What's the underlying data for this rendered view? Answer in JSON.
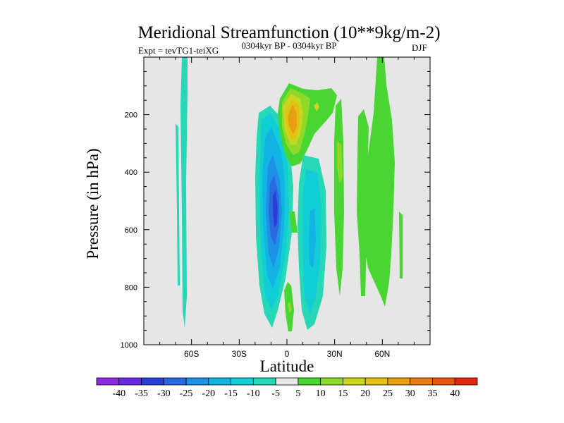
{
  "chart_data": {
    "type": "contour",
    "title": "Meridional Streamfunction (10**9kg/m-2)",
    "left_string": "Expt = tevTG1-teiXG",
    "center_string": "0304kyr BP - 0304kyr BP",
    "right_string": "DJF",
    "xlabel": "Latitude",
    "ylabel": "Pressure (in hPa)",
    "xlim": [
      -90,
      90
    ],
    "ylim": [
      1000,
      0
    ],
    "x_ticks": [
      {
        "value": -60,
        "label": "60S"
      },
      {
        "value": -30,
        "label": "30S"
      },
      {
        "value": 0,
        "label": "0"
      },
      {
        "value": 30,
        "label": "30N"
      },
      {
        "value": 60,
        "label": "60N"
      }
    ],
    "y_ticks": [
      {
        "value": 200,
        "label": "200"
      },
      {
        "value": 400,
        "label": "400"
      },
      {
        "value": 600,
        "label": "600"
      },
      {
        "value": 800,
        "label": "800"
      },
      {
        "value": 1000,
        "label": "1000"
      }
    ],
    "colorbar": {
      "levels": [
        "-40",
        "-35",
        "-30",
        "-25",
        "-20",
        "-15",
        "-10",
        "-5",
        "5",
        "10",
        "15",
        "20",
        "25",
        "30",
        "35",
        "40"
      ],
      "colors": [
        "#8a2be2",
        "#6a2be0",
        "#2b3fd6",
        "#2a6ae0",
        "#1e90e6",
        "#12b4e4",
        "#10cdd6",
        "#26d8b8",
        "#e6e6e6",
        "#4ad632",
        "#8fd92a",
        "#c8d61e",
        "#e3c014",
        "#e6a012",
        "#e67b10",
        "#e6540e",
        "#e0280a"
      ]
    },
    "features": [
      {
        "name": "sh-cell-min",
        "lat": -10,
        "plev": 500,
        "value": -30
      },
      {
        "name": "upper-tropic-max",
        "lat": 1,
        "plev": 220,
        "value": 25
      },
      {
        "name": "ny-band",
        "lat": 53,
        "plev": 400,
        "value": 10
      }
    ]
  }
}
